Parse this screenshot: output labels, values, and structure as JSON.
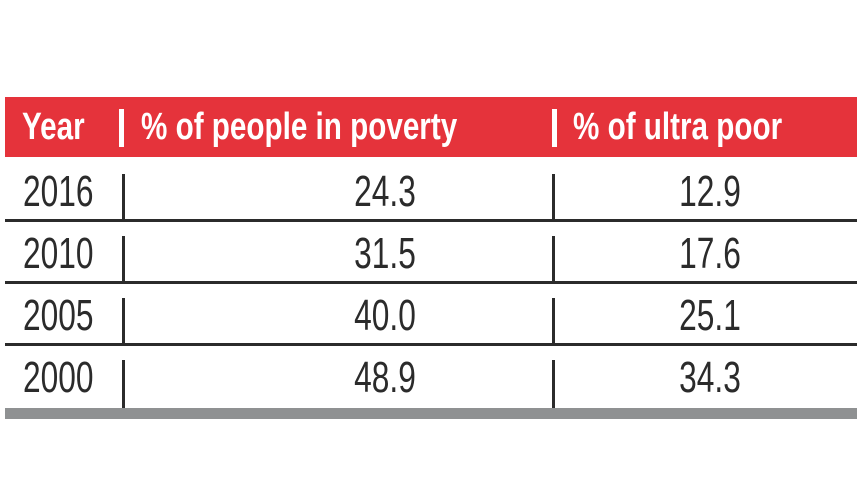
{
  "chart_data": {
    "type": "table",
    "columns": [
      "Year",
      "% of people in poverty",
      "% of ultra poor"
    ],
    "rows": [
      [
        "2016",
        "24.3",
        "12.9"
      ],
      [
        "2010",
        "31.5",
        "17.6"
      ],
      [
        "2005",
        "40.0",
        "25.1"
      ],
      [
        "2000",
        "48.9",
        "34.3"
      ]
    ]
  },
  "colors": {
    "header_bg": "#e5333b",
    "text": "#2b2b2b",
    "footer_bar": "#8f9192"
  }
}
